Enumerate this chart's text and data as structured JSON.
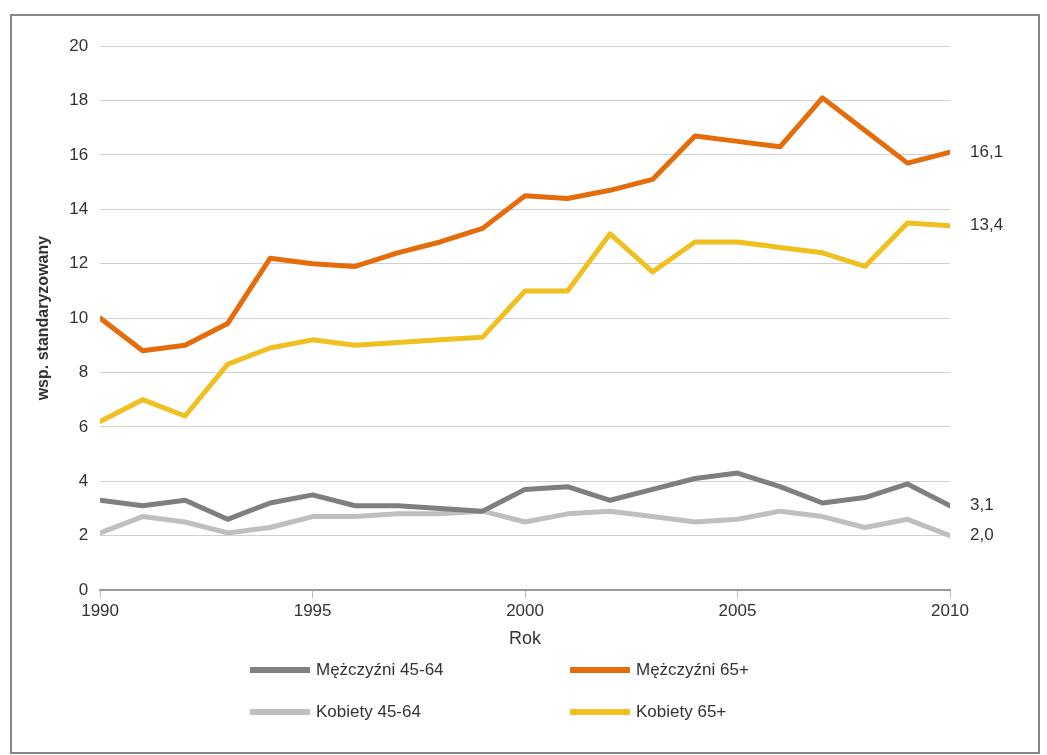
{
  "chart_data": {
    "type": "line",
    "xlabel": "Rok",
    "ylabel": "wsp. standaryzowany",
    "x": [
      1990,
      1991,
      1992,
      1993,
      1994,
      1995,
      1996,
      1997,
      1998,
      1999,
      2000,
      2001,
      2002,
      2003,
      2004,
      2005,
      2006,
      2007,
      2008,
      2009,
      2010
    ],
    "xlim": [
      1990,
      2010
    ],
    "xticks": [
      1990,
      1995,
      2000,
      2005,
      2010
    ],
    "ylim": [
      0,
      20
    ],
    "yticks": [
      0,
      2,
      4,
      6,
      8,
      10,
      12,
      14,
      16,
      18,
      20
    ],
    "grid": "y",
    "legend": "bottom",
    "marker": "none",
    "line_style": "solid",
    "series": [
      {
        "name": "Mężczyźni 45-64",
        "color": "#7f7f7f",
        "values": [
          3.3,
          3.1,
          3.3,
          2.6,
          3.2,
          3.5,
          3.1,
          3.1,
          3.0,
          2.9,
          3.7,
          3.8,
          3.3,
          3.7,
          4.1,
          4.3,
          3.8,
          3.2,
          3.4,
          3.9,
          3.1
        ],
        "value_labels": [
          null,
          null,
          null,
          null,
          null,
          null,
          null,
          null,
          null,
          null,
          null,
          null,
          null,
          null,
          null,
          null,
          null,
          null,
          null,
          null,
          "3,1"
        ]
      },
      {
        "name": "Mężczyźni 65+",
        "color": "#e46c0a",
        "values": [
          10.0,
          8.8,
          9.0,
          9.8,
          12.2,
          12.0,
          11.9,
          12.4,
          12.8,
          13.3,
          14.5,
          14.4,
          14.7,
          15.1,
          16.7,
          16.5,
          16.3,
          18.1,
          16.9,
          15.7,
          16.1
        ],
        "value_labels": [
          null,
          null,
          null,
          null,
          null,
          null,
          null,
          null,
          null,
          null,
          null,
          null,
          null,
          null,
          null,
          null,
          null,
          null,
          null,
          null,
          "16,1"
        ]
      },
      {
        "name": "Kobiety 45-64",
        "color": "#bfbfbf",
        "values": [
          2.1,
          2.7,
          2.5,
          2.1,
          2.3,
          2.7,
          2.7,
          2.8,
          2.8,
          2.9,
          2.5,
          2.8,
          2.9,
          2.7,
          2.5,
          2.6,
          2.9,
          2.7,
          2.3,
          2.6,
          2.0
        ],
        "value_labels": [
          null,
          null,
          null,
          null,
          null,
          null,
          null,
          null,
          null,
          null,
          null,
          null,
          null,
          null,
          null,
          null,
          null,
          null,
          null,
          null,
          "2,0"
        ]
      },
      {
        "name": "Kobiety 65+",
        "color": "#f0c020",
        "values": [
          6.2,
          7.0,
          6.4,
          8.3,
          8.9,
          9.2,
          9.0,
          9.1,
          9.2,
          9.3,
          11.0,
          11.0,
          13.1,
          11.7,
          12.8,
          12.8,
          12.6,
          12.4,
          11.9,
          13.5,
          13.4
        ],
        "value_labels": [
          null,
          null,
          null,
          null,
          null,
          null,
          null,
          null,
          null,
          null,
          null,
          null,
          null,
          null,
          null,
          null,
          null,
          null,
          null,
          null,
          "13,4"
        ]
      }
    ]
  }
}
